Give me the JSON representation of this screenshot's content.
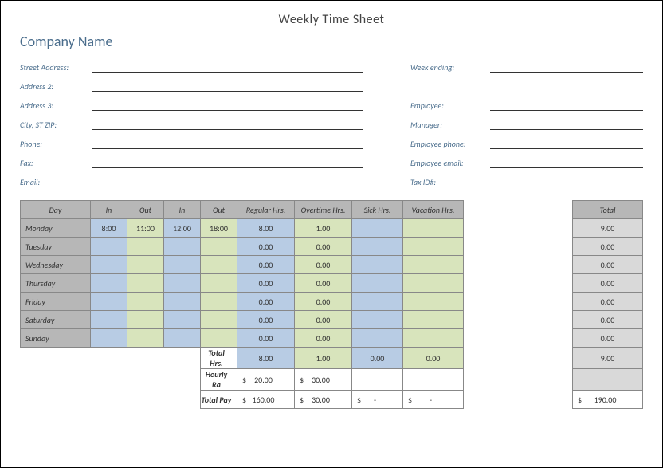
{
  "title": "Weekly Time Sheet",
  "company_name": "Company Name",
  "left_fields": [
    "Street Address:",
    "Address 2:",
    "Address 3:",
    "City, ST  ZIP:",
    "Phone:",
    "Fax:",
    "Email:"
  ],
  "right_fields": [
    "Week ending:",
    "",
    "Employee:",
    "Manager:",
    "Employee phone:",
    "Employee email:",
    "Tax ID#:"
  ],
  "table": {
    "headers": [
      "Day",
      "In",
      "Out",
      "In",
      "Out",
      "Regular Hrs.",
      "Overtime Hrs.",
      "Sick Hrs.",
      "Vacation Hrs.",
      "Total"
    ],
    "col_widths": [
      "88px",
      "46px",
      "46px",
      "46px",
      "46px",
      "72px",
      "72px",
      "64px",
      "76px",
      "",
      "88px"
    ],
    "col_classes": [
      "day-name",
      "col-blue",
      "col-green",
      "col-blue",
      "col-green",
      "col-blue",
      "col-green",
      "col-blue",
      "col-green",
      "",
      "col-total"
    ],
    "rows": [
      {
        "day": "Monday",
        "in1": "8:00",
        "out1": "11:00",
        "in2": "12:00",
        "out2": "18:00",
        "reg": "8.00",
        "ot": "1.00",
        "sick": "",
        "vac": "",
        "total": "9.00"
      },
      {
        "day": "Tuesday",
        "in1": "",
        "out1": "",
        "in2": "",
        "out2": "",
        "reg": "0.00",
        "ot": "0.00",
        "sick": "",
        "vac": "",
        "total": "0.00"
      },
      {
        "day": "Wednesday",
        "in1": "",
        "out1": "",
        "in2": "",
        "out2": "",
        "reg": "0.00",
        "ot": "0.00",
        "sick": "",
        "vac": "",
        "total": "0.00"
      },
      {
        "day": "Thursday",
        "in1": "",
        "out1": "",
        "in2": "",
        "out2": "",
        "reg": "0.00",
        "ot": "0.00",
        "sick": "",
        "vac": "",
        "total": "0.00"
      },
      {
        "day": "Friday",
        "in1": "",
        "out1": "",
        "in2": "",
        "out2": "",
        "reg": "0.00",
        "ot": "0.00",
        "sick": "",
        "vac": "",
        "total": "0.00"
      },
      {
        "day": "Saturday",
        "in1": "",
        "out1": "",
        "in2": "",
        "out2": "",
        "reg": "0.00",
        "ot": "0.00",
        "sick": "",
        "vac": "",
        "total": "0.00"
      },
      {
        "day": "Sunday",
        "in1": "",
        "out1": "",
        "in2": "",
        "out2": "",
        "reg": "0.00",
        "ot": "0.00",
        "sick": "",
        "vac": "",
        "total": "0.00"
      }
    ],
    "summary": {
      "total_hrs_label": "Total Hrs.",
      "total_hrs": {
        "reg": "8.00",
        "ot": "1.00",
        "sick": "0.00",
        "vac": "0.00",
        "total": "9.00"
      },
      "hourly_rate_label": "Hourly Ra",
      "hourly_rate": {
        "reg": "20.00",
        "ot": "30.00",
        "sick": "",
        "vac": "",
        "total": ""
      },
      "total_pay_label": "Total Pay",
      "total_pay": {
        "reg": "160.00",
        "ot": "30.00",
        "sick": "-",
        "vac": "-",
        "total": "190.00"
      }
    },
    "currency_symbol": "$"
  },
  "styling": {
    "header_bg": "#b7b7b7",
    "blue_bg": "#b8cce4",
    "green_bg": "#d8e4bc",
    "total_bg": "#d9d9d9",
    "accent_color": "#4a6d8c",
    "border_color": "#888888",
    "font_family": "Calibri"
  }
}
